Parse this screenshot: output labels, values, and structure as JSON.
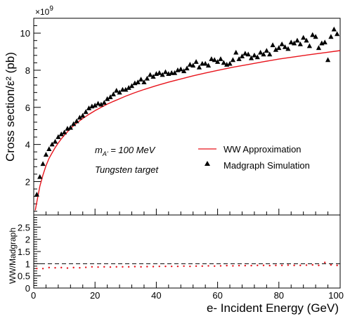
{
  "chart_data": [
    {
      "type": "scatter",
      "panel": "main",
      "xlabel": "e- Incident Energy (GeV)",
      "ylabel": "Cross section/ε² (pb)",
      "y_multiplier": "×10",
      "y_multiplier_exp": "9",
      "xlim": [
        0,
        100
      ],
      "ylim": [
        0.2,
        10.8
      ],
      "y_unit_scale": 1000000000.0,
      "x_ticks": [
        "0",
        "20",
        "40",
        "60",
        "80",
        "100"
      ],
      "y_ticks": [
        "2",
        "4",
        "6",
        "8",
        "10"
      ],
      "annotation_mass_prefix": "m",
      "annotation_mass_sub": "A'",
      "annotation_mass_value": " = 100 MeV",
      "annotation_target": "Tungsten target",
      "legend": {
        "position": "right",
        "items": [
          {
            "label": "WW Approximation",
            "marker": "line",
            "color": "#e8141c"
          },
          {
            "label": "Madgraph Simulation",
            "marker": "triangle",
            "color": "#000000"
          }
        ]
      },
      "series": [
        {
          "name": "WW Approximation",
          "color": "#e8141c",
          "style": "line",
          "x": [
            0.5,
            1,
            2,
            3,
            4,
            5,
            6,
            7,
            8,
            9,
            10,
            12,
            14,
            16,
            18,
            20,
            22,
            24,
            26,
            28,
            30,
            33,
            36,
            40,
            44,
            48,
            52,
            56,
            60,
            65,
            70,
            75,
            80,
            85,
            90,
            95,
            100
          ],
          "y": [
            0.45,
            0.9,
            1.75,
            2.35,
            2.85,
            3.25,
            3.55,
            3.83,
            4.08,
            4.3,
            4.5,
            4.86,
            5.15,
            5.4,
            5.62,
            5.82,
            6.0,
            6.17,
            6.32,
            6.46,
            6.6,
            6.79,
            6.96,
            7.17,
            7.36,
            7.53,
            7.7,
            7.85,
            7.99,
            8.16,
            8.31,
            8.46,
            8.6,
            8.72,
            8.84,
            8.95,
            9.06
          ]
        },
        {
          "name": "Madgraph Simulation",
          "color": "#000000",
          "style": "triangle",
          "x": [
            1,
            2,
            3,
            4,
            5,
            6,
            7,
            8,
            9,
            10,
            11,
            12,
            13,
            14,
            15,
            16,
            17,
            18,
            19,
            20,
            21,
            22,
            23,
            24,
            25,
            26,
            27,
            28,
            29,
            30,
            31,
            32,
            33,
            34,
            35,
            36,
            37,
            38,
            39,
            40,
            41,
            42,
            43,
            44,
            45,
            46,
            47,
            48,
            49,
            50,
            51,
            52,
            53,
            54,
            55,
            56,
            57,
            58,
            59,
            60,
            61,
            62,
            63,
            64,
            65,
            66,
            67,
            68,
            69,
            70,
            71,
            72,
            73,
            74,
            75,
            76,
            77,
            78,
            79,
            80,
            81,
            82,
            83,
            84,
            85,
            86,
            87,
            88,
            89,
            90,
            91,
            92,
            93,
            94,
            95,
            96,
            97,
            98,
            99
          ],
          "y": [
            1.3,
            2.25,
            2.95,
            3.45,
            3.75,
            4.0,
            4.15,
            4.4,
            4.55,
            4.65,
            4.85,
            4.9,
            5.1,
            5.25,
            5.45,
            5.55,
            5.75,
            5.95,
            6.05,
            6.1,
            6.2,
            6.15,
            6.25,
            6.45,
            6.55,
            6.7,
            6.9,
            6.8,
            6.95,
            6.95,
            7.05,
            7.15,
            7.3,
            7.35,
            7.5,
            7.35,
            7.55,
            7.75,
            7.65,
            7.8,
            7.85,
            7.75,
            7.9,
            7.8,
            7.85,
            7.85,
            8.0,
            8.05,
            7.95,
            8.1,
            8.3,
            8.25,
            8.45,
            8.15,
            8.35,
            8.35,
            8.25,
            8.6,
            8.55,
            8.45,
            8.6,
            8.4,
            8.3,
            8.35,
            8.55,
            8.95,
            8.6,
            8.75,
            8.9,
            8.85,
            8.65,
            8.8,
            8.7,
            8.95,
            8.85,
            9.05,
            8.85,
            9.35,
            9.1,
            9.2,
            9.4,
            9.25,
            9.15,
            9.5,
            9.45,
            9.6,
            9.4,
            9.75,
            9.6,
            9.3,
            9.9,
            9.8,
            9.2,
            9.45,
            9.5,
            8.55,
            9.8,
            10.2,
            9.95
          ]
        }
      ]
    },
    {
      "type": "scatter",
      "panel": "ratio",
      "ylabel": "WW/Madgraph",
      "xlim": [
        0,
        100
      ],
      "ylim": [
        0,
        3
      ],
      "y_ticks": [
        "0",
        "0.5",
        "1",
        "1.5",
        "2",
        "2.5"
      ],
      "reference_line": 1,
      "series": [
        {
          "name": "WW/Madgraph",
          "color": "#e8141c",
          "style": "point",
          "x": [
            1,
            3,
            5,
            7,
            9,
            11,
            13,
            15,
            17,
            19,
            21,
            23,
            25,
            27,
            29,
            31,
            33,
            35,
            37,
            39,
            41,
            43,
            45,
            47,
            49,
            51,
            53,
            55,
            57,
            59,
            61,
            63,
            65,
            67,
            69,
            71,
            73,
            75,
            77,
            79,
            81,
            83,
            85,
            87,
            89,
            91,
            93,
            95,
            97,
            99
          ],
          "y": [
            0.8,
            0.8,
            0.84,
            0.83,
            0.84,
            0.82,
            0.84,
            0.83,
            0.85,
            0.87,
            0.86,
            0.87,
            0.86,
            0.87,
            0.87,
            0.87,
            0.88,
            0.87,
            0.88,
            0.88,
            0.89,
            0.89,
            0.89,
            0.89,
            0.9,
            0.89,
            0.9,
            0.9,
            0.91,
            0.9,
            0.91,
            0.92,
            0.91,
            0.92,
            0.92,
            0.92,
            0.93,
            0.93,
            0.92,
            0.93,
            0.93,
            0.94,
            0.93,
            0.93,
            0.94,
            0.95,
            0.93,
            1.05,
            0.95,
            0.93
          ]
        }
      ]
    }
  ]
}
